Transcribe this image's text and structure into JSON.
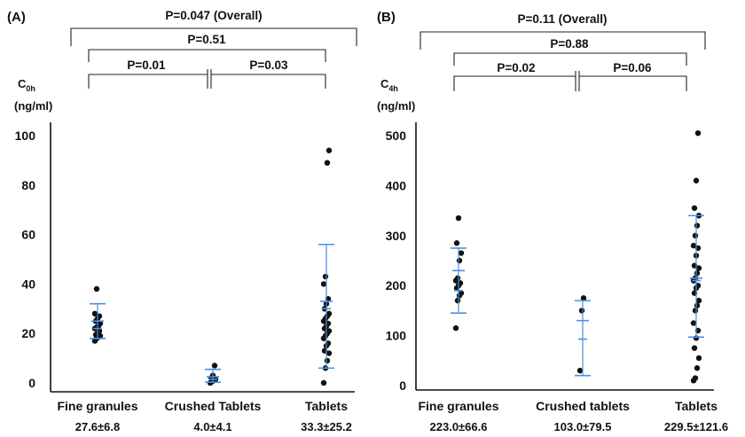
{
  "chart_data": [
    {
      "type": "scatter",
      "panel_label": "(A)",
      "ylabel_main": "C",
      "ylabel_sub": "0h",
      "ylabel_unit": "(ng/ml)",
      "ylim": [
        0,
        100
      ],
      "yticks": [
        "0",
        "20",
        "40",
        "60",
        "80",
        "100"
      ],
      "yticks_values": [
        0,
        20,
        40,
        60,
        80,
        100
      ],
      "categories": [
        "Fine granules",
        "Crushed Tablets",
        "Tablets"
      ],
      "summary_labels": [
        "27.6±6.8",
        "4.0±4.1",
        "33.3±25.2"
      ],
      "brackets": [
        {
          "label": "P=0.047 (Overall)",
          "from": 0,
          "to": 2
        },
        {
          "label": "P=0.51",
          "from": 0,
          "to": 2
        },
        {
          "label": "P=0.01",
          "from": 0,
          "to": 1
        },
        {
          "label": "P=0.03",
          "from": 1,
          "to": 2
        }
      ],
      "series": [
        {
          "values": [
            17,
            18,
            18.5,
            19,
            19.5,
            20,
            21,
            22,
            22.5,
            23,
            24,
            25,
            26,
            27,
            28,
            38
          ]
        },
        {
          "values": [
            0,
            0.5,
            1,
            1.5,
            2,
            3,
            7
          ]
        },
        {
          "values": [
            0,
            6,
            9,
            12,
            13,
            15,
            16,
            18,
            19,
            20,
            21,
            22,
            23,
            24,
            25,
            26,
            27,
            28,
            30,
            32,
            34,
            40,
            43,
            89,
            94
          ]
        }
      ],
      "bars": [
        {
          "upper": 32,
          "mean": 25,
          "mean_ci": 22,
          "lower": 18
        },
        {
          "upper": 5.5,
          "mean": 2.5,
          "mean_ci": 1.5,
          "lower": 0.3
        },
        {
          "upper": 56,
          "mean": 33,
          "mean_ci": 30,
          "lower": 6
        }
      ]
    },
    {
      "type": "scatter",
      "panel_label": "(B)",
      "ylabel_main": "C",
      "ylabel_sub": "4h",
      "ylabel_unit": "(ng/ml)",
      "ylim": [
        0,
        520
      ],
      "yticks": [
        "0",
        "100",
        "200",
        "300",
        "400",
        "500"
      ],
      "yticks_values": [
        0,
        100,
        200,
        300,
        400,
        500
      ],
      "categories": [
        "Fine granules",
        "Crushed tablets",
        "Tablets"
      ],
      "summary_labels": [
        "223.0±66.6",
        "103.0±79.5",
        "229.5±121.6"
      ],
      "brackets": [
        {
          "label": "P=0.11 (Overall)",
          "from": 0,
          "to": 2
        },
        {
          "label": "P=0.88",
          "from": 0,
          "to": 2
        },
        {
          "label": "P=0.02",
          "from": 0,
          "to": 1
        },
        {
          "label": "P=0.06",
          "from": 1,
          "to": 2
        }
      ],
      "series": [
        {
          "values": [
            115,
            170,
            180,
            185,
            195,
            200,
            205,
            210,
            215,
            250,
            265,
            285,
            335
          ]
        },
        {
          "values": [
            30,
            150,
            175
          ]
        },
        {
          "values": [
            10,
            15,
            35,
            55,
            75,
            95,
            110,
            125,
            150,
            160,
            170,
            185,
            195,
            200,
            210,
            215,
            225,
            235,
            240,
            260,
            275,
            280,
            300,
            320,
            340,
            355,
            410,
            505
          ]
        }
      ],
      "bars": [
        {
          "upper": 275,
          "mean": 230,
          "mean_ci": 190,
          "lower": 145
        },
        {
          "upper": 170,
          "mean": 130,
          "mean_ci": 93,
          "lower": 20
        },
        {
          "upper": 340,
          "mean": 215,
          "mean_ci": 210,
          "lower": 97
        }
      ]
    }
  ]
}
